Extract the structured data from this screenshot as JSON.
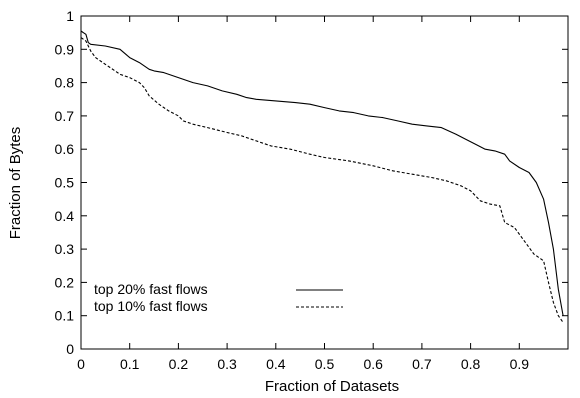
{
  "chart_data": {
    "type": "line",
    "title": "",
    "xlabel": "Fraction of Datasets",
    "ylabel": "Fraction of Bytes",
    "xlim": [
      0,
      1
    ],
    "ylim": [
      0,
      1
    ],
    "xticks": [
      0,
      0.1,
      0.2,
      0.3,
      0.4,
      0.5,
      0.6,
      0.7,
      0.8,
      0.9
    ],
    "xtick_labels": [
      "0",
      "0.1",
      "0.2",
      "0.3",
      "0.4",
      "0.5",
      "0.6",
      "0.7",
      "0.8",
      "0.9"
    ],
    "yticks": [
      0,
      0.1,
      0.2,
      0.3,
      0.4,
      0.5,
      0.6,
      0.7,
      0.8,
      0.9,
      1
    ],
    "ytick_labels": [
      "0",
      "0.1",
      "0.2",
      "0.3",
      "0.4",
      "0.5",
      "0.6",
      "0.7",
      "0.8",
      "0.9",
      "1"
    ],
    "grid": false,
    "legend_position": "bottom-left",
    "series": [
      {
        "name": "top 20% fast flows",
        "line_style": "solid",
        "color": "#000000",
        "points": [
          [
            0.0,
            0.955
          ],
          [
            0.005,
            0.95
          ],
          [
            0.01,
            0.945
          ],
          [
            0.015,
            0.92
          ],
          [
            0.02,
            0.915
          ],
          [
            0.05,
            0.91
          ],
          [
            0.08,
            0.9
          ],
          [
            0.1,
            0.875
          ],
          [
            0.12,
            0.86
          ],
          [
            0.14,
            0.84
          ],
          [
            0.15,
            0.835
          ],
          [
            0.17,
            0.83
          ],
          [
            0.2,
            0.815
          ],
          [
            0.23,
            0.8
          ],
          [
            0.26,
            0.79
          ],
          [
            0.29,
            0.775
          ],
          [
            0.32,
            0.765
          ],
          [
            0.34,
            0.755
          ],
          [
            0.36,
            0.75
          ],
          [
            0.4,
            0.745
          ],
          [
            0.44,
            0.74
          ],
          [
            0.47,
            0.735
          ],
          [
            0.5,
            0.725
          ],
          [
            0.53,
            0.715
          ],
          [
            0.56,
            0.71
          ],
          [
            0.59,
            0.7
          ],
          [
            0.62,
            0.695
          ],
          [
            0.65,
            0.685
          ],
          [
            0.68,
            0.675
          ],
          [
            0.71,
            0.67
          ],
          [
            0.74,
            0.665
          ],
          [
            0.77,
            0.645
          ],
          [
            0.79,
            0.63
          ],
          [
            0.81,
            0.615
          ],
          [
            0.83,
            0.6
          ],
          [
            0.85,
            0.595
          ],
          [
            0.87,
            0.585
          ],
          [
            0.88,
            0.565
          ],
          [
            0.9,
            0.545
          ],
          [
            0.92,
            0.53
          ],
          [
            0.935,
            0.5
          ],
          [
            0.95,
            0.45
          ],
          [
            0.96,
            0.38
          ],
          [
            0.97,
            0.3
          ],
          [
            0.98,
            0.18
          ],
          [
            0.99,
            0.1
          ]
        ]
      },
      {
        "name": "top 10% fast flows",
        "line_style": "dashed",
        "color": "#000000",
        "points": [
          [
            0.0,
            0.935
          ],
          [
            0.01,
            0.925
          ],
          [
            0.02,
            0.895
          ],
          [
            0.03,
            0.875
          ],
          [
            0.05,
            0.855
          ],
          [
            0.07,
            0.835
          ],
          [
            0.08,
            0.825
          ],
          [
            0.1,
            0.815
          ],
          [
            0.12,
            0.8
          ],
          [
            0.13,
            0.785
          ],
          [
            0.14,
            0.76
          ],
          [
            0.16,
            0.735
          ],
          [
            0.18,
            0.715
          ],
          [
            0.2,
            0.7
          ],
          [
            0.21,
            0.685
          ],
          [
            0.23,
            0.675
          ],
          [
            0.26,
            0.665
          ],
          [
            0.3,
            0.65
          ],
          [
            0.33,
            0.64
          ],
          [
            0.36,
            0.625
          ],
          [
            0.39,
            0.61
          ],
          [
            0.43,
            0.6
          ],
          [
            0.47,
            0.585
          ],
          [
            0.5,
            0.575
          ],
          [
            0.55,
            0.565
          ],
          [
            0.6,
            0.55
          ],
          [
            0.64,
            0.535
          ],
          [
            0.68,
            0.525
          ],
          [
            0.72,
            0.515
          ],
          [
            0.75,
            0.505
          ],
          [
            0.78,
            0.49
          ],
          [
            0.8,
            0.475
          ],
          [
            0.82,
            0.445
          ],
          [
            0.84,
            0.435
          ],
          [
            0.86,
            0.43
          ],
          [
            0.87,
            0.38
          ],
          [
            0.89,
            0.365
          ],
          [
            0.91,
            0.325
          ],
          [
            0.93,
            0.285
          ],
          [
            0.95,
            0.265
          ],
          [
            0.96,
            0.2
          ],
          [
            0.97,
            0.14
          ],
          [
            0.98,
            0.1
          ],
          [
            0.99,
            0.08
          ]
        ]
      }
    ]
  }
}
